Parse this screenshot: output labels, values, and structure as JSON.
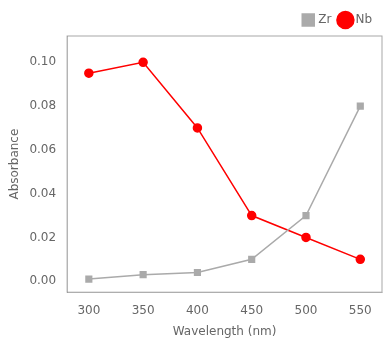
{
  "chart_data": {
    "type": "line",
    "x": [
      300,
      350,
      400,
      450,
      500,
      550
    ],
    "series": [
      {
        "name": "Zr",
        "color": "#aaaaaa",
        "marker": "square",
        "values": [
          0.001,
          0.003,
          0.004,
          0.01,
          0.03,
          0.08
        ]
      },
      {
        "name": "Nb",
        "color": "#ff0000",
        "marker": "circle",
        "values": [
          0.095,
          0.1,
          0.07,
          0.03,
          0.02,
          0.01
        ]
      }
    ],
    "xlabel": "Wavelength (nm)",
    "ylabel": "Absorbance",
    "xlim": [
      280,
      570
    ],
    "ylim": [
      -0.005,
      0.112
    ],
    "xticks": [
      300,
      350,
      400,
      450,
      500,
      550
    ],
    "yticks": [
      {
        "value": 0,
        "label": "0.00"
      },
      0.02,
      0.04,
      0.06,
      0.08,
      {
        "value": 0.1,
        "label": "0.10"
      }
    ],
    "grid": false,
    "legend": "upper right"
  }
}
